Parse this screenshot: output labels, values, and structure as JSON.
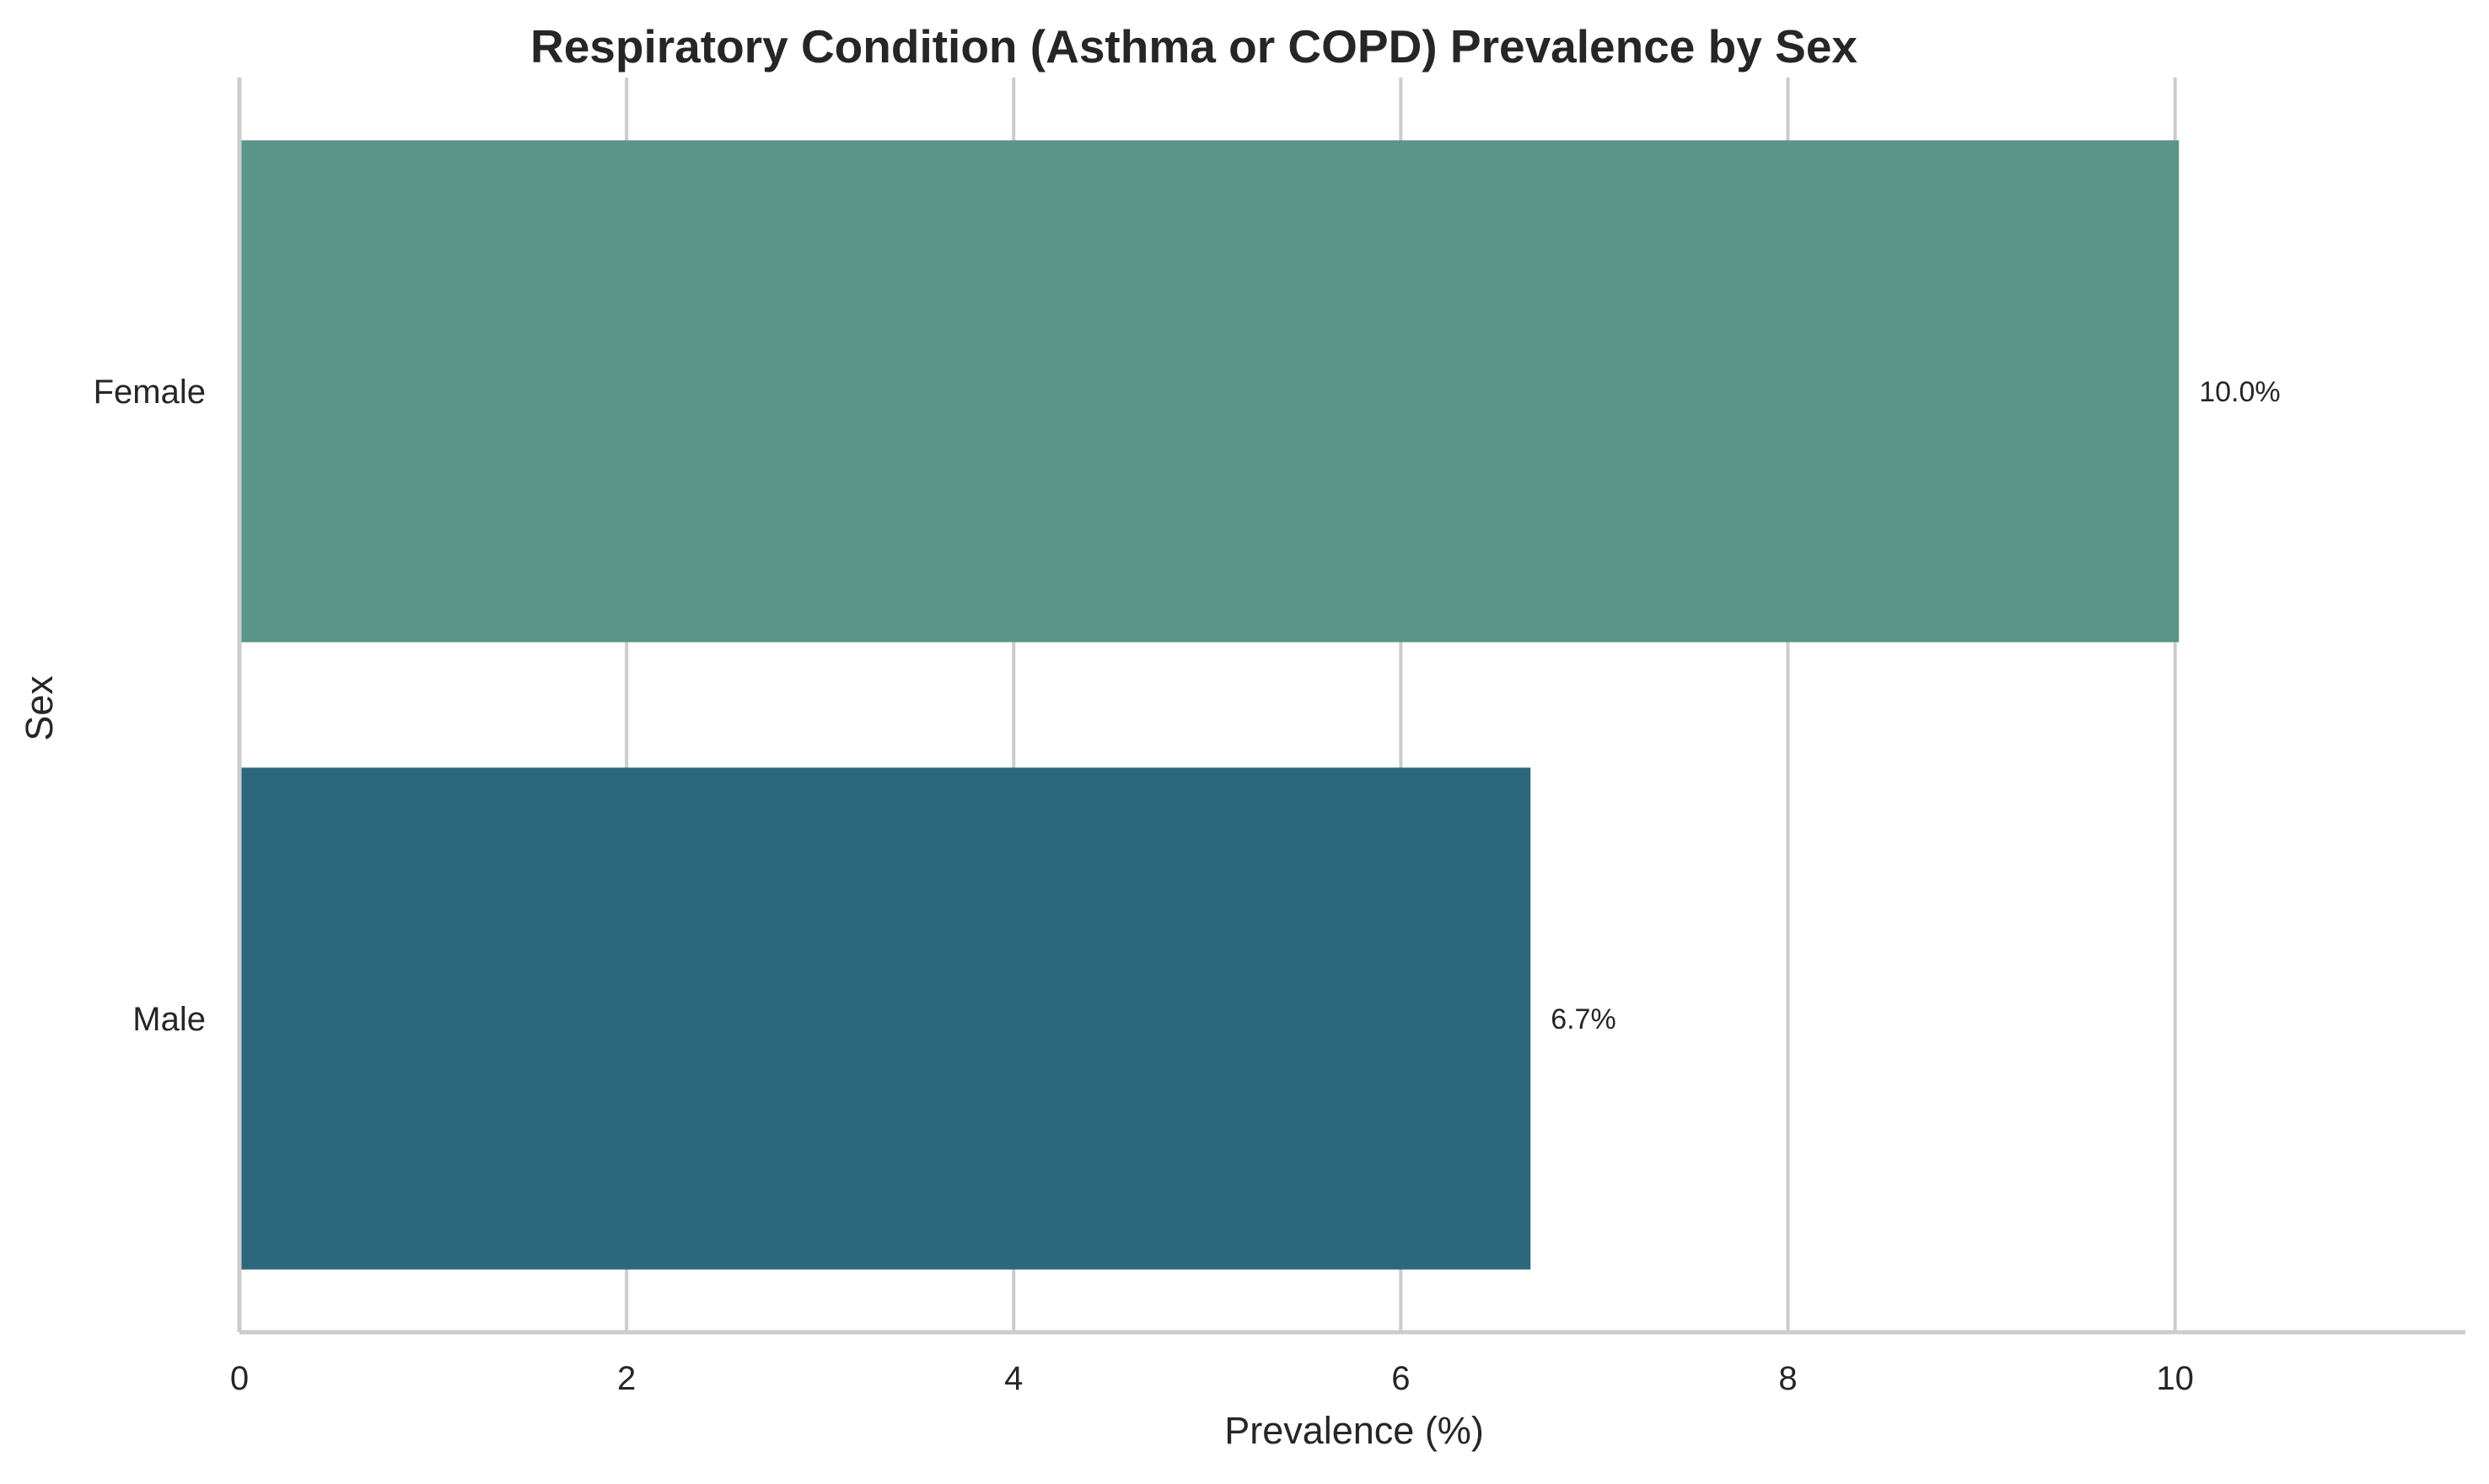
{
  "chart_data": {
    "type": "bar",
    "orientation": "horizontal",
    "title": "Respiratory Condition (Asthma or COPD) Prevalence by Sex",
    "xlabel": "Prevalence (%)",
    "ylabel": "Sex",
    "categories": [
      "Female",
      "Male"
    ],
    "values": [
      10.02,
      6.67
    ],
    "value_labels": [
      "10.0%",
      "6.7%"
    ],
    "colors": [
      "#5b9489",
      "#2d677b"
    ],
    "xlim": [
      0,
      11.5
    ],
    "xticks": [
      0,
      2,
      4,
      6,
      8,
      10
    ],
    "xtick_labels": [
      "0",
      "2",
      "4",
      "6",
      "8",
      "10"
    ],
    "grid": "vertical",
    "legend": "none"
  }
}
